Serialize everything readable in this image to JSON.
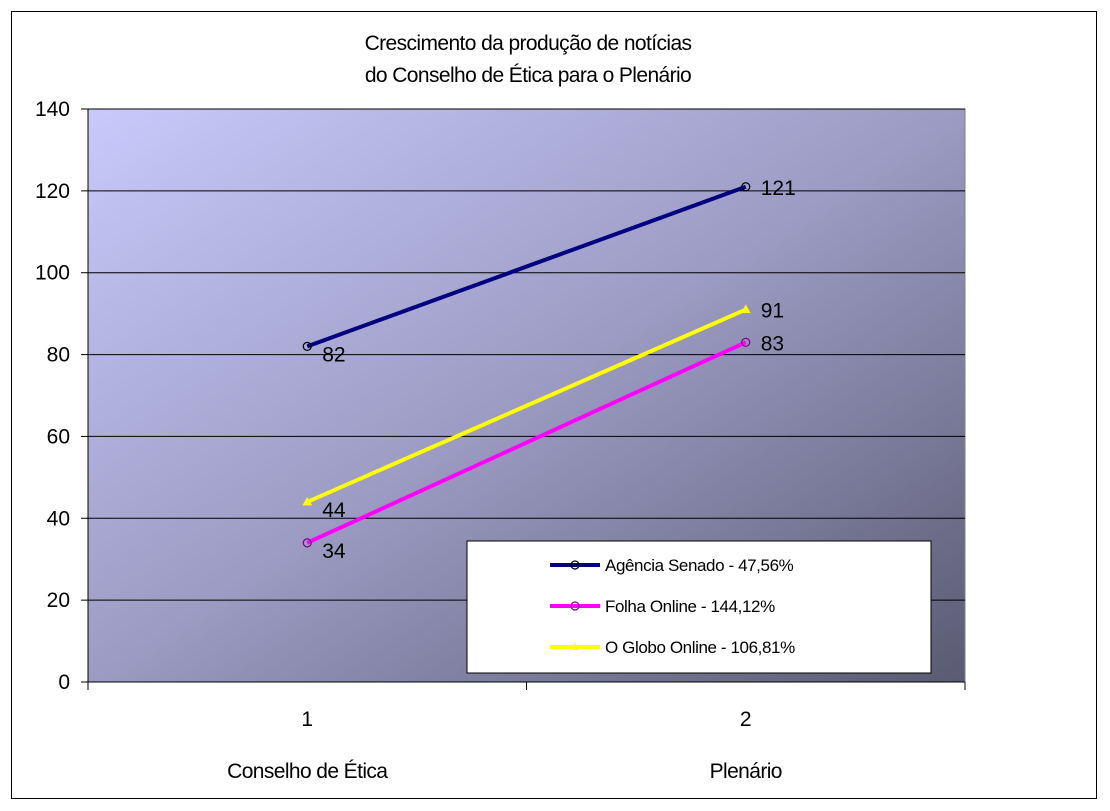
{
  "chart_data": {
    "type": "line",
    "title_lines": [
      "Crescimento da produção de notícias",
      "do Conselho de Ética para o Plenário"
    ],
    "categories": [
      "1",
      "2"
    ],
    "category_names": [
      "Conselho de Ética",
      "Plenário"
    ],
    "ylim": [
      0,
      140
    ],
    "yticks": [
      0,
      20,
      40,
      60,
      80,
      100,
      120,
      140
    ],
    "grid": true,
    "legend_position": "bottom-right",
    "series": [
      {
        "name": "Agência Senado - 47,56%",
        "values": [
          82,
          121
        ],
        "color": "#000080",
        "marker": "circle"
      },
      {
        "name": "Folha Online - 144,12%",
        "values": [
          34,
          83
        ],
        "color": "#ff00ff",
        "marker": "circle"
      },
      {
        "name": "O Globo Online - 106,81%",
        "values": [
          44,
          91
        ],
        "color": "#ffff00",
        "marker": "triangle"
      }
    ]
  }
}
